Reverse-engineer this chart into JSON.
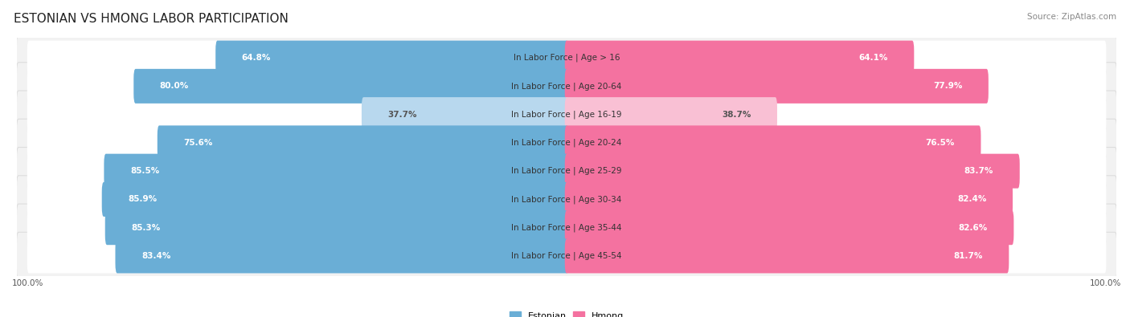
{
  "title": "ESTONIAN VS HMONG LABOR PARTICIPATION",
  "source": "Source: ZipAtlas.com",
  "categories": [
    "In Labor Force | Age > 16",
    "In Labor Force | Age 20-64",
    "In Labor Force | Age 16-19",
    "In Labor Force | Age 20-24",
    "In Labor Force | Age 25-29",
    "In Labor Force | Age 30-34",
    "In Labor Force | Age 35-44",
    "In Labor Force | Age 45-54"
  ],
  "estonian_values": [
    64.8,
    80.0,
    37.7,
    75.6,
    85.5,
    85.9,
    85.3,
    83.4
  ],
  "hmong_values": [
    64.1,
    77.9,
    38.7,
    76.5,
    83.7,
    82.4,
    82.6,
    81.7
  ],
  "estonian_color": "#6AAED6",
  "estonian_color_light": "#B8D8EE",
  "hmong_color": "#F472A0",
  "hmong_color_light": "#F9C0D4",
  "row_bg_color": "#f2f2f2",
  "row_border_color": "#dddddd",
  "max_value": 100.0,
  "legend_estonian": "Estonian",
  "legend_hmong": "Hmong",
  "title_fontsize": 11,
  "label_fontsize": 7.5,
  "value_fontsize": 7.5,
  "tick_fontsize": 7.5,
  "source_fontsize": 7.5,
  "light_row_idx": 2
}
